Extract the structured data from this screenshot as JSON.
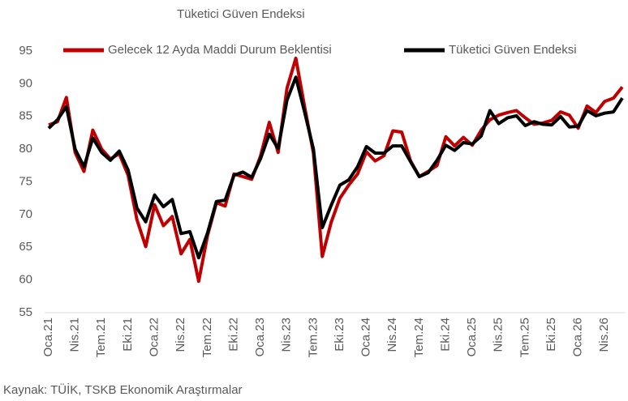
{
  "chart_data": {
    "type": "line",
    "title": "Tüketici Güven Endeksi",
    "source": "Kaynak: TÜİK, TSKB Ekonomik Araştırmalar",
    "categories": [
      "Oca.21",
      null,
      null,
      "Nis.21",
      null,
      null,
      "Tem.21",
      null,
      null,
      "Eki.21",
      null,
      null,
      "Oca.22",
      null,
      null,
      "Nis.22",
      null,
      null,
      "Tem.22",
      null,
      null,
      "Eki.22",
      null,
      null,
      "Oca.23",
      null,
      null,
      "Nis.23",
      null,
      null,
      "Tem.23",
      null,
      null,
      "Eki.23",
      null,
      null,
      "Oca.24",
      null,
      null,
      "Nis.24",
      null,
      null,
      "Tem.24",
      null,
      null,
      "Eki.24",
      null,
      null,
      "Oca.25",
      null,
      null,
      "Nis.25",
      null,
      null,
      "Tem.25",
      null,
      null,
      "Eki.25",
      null,
      null,
      "Oca.26",
      null,
      null,
      "Nis.26",
      null,
      null
    ],
    "series": [
      {
        "name": "Gelecek 12 Ayda Maddi Durum Beklentisi",
        "color": "#c00000",
        "values": [
          83.7,
          84.2,
          87.9,
          79.5,
          76.6,
          82.9,
          80,
          78.5,
          79.3,
          76,
          69.2,
          65.1,
          71.5,
          68.3,
          69.7,
          64,
          66.2,
          59.8,
          66.8,
          71.8,
          71.3,
          76.2,
          75.8,
          75.4,
          78.9,
          84.1,
          79.5,
          89.3,
          93.9,
          86.5,
          79.4,
          63.6,
          68.8,
          72.5,
          74.5,
          76.2,
          79.6,
          78.2,
          79,
          82.8,
          82.6,
          78.2,
          75.8,
          76.6,
          77.5,
          81.9,
          80.5,
          81.8,
          80.6,
          82.9,
          84.5,
          85.2,
          85.6,
          85.9,
          84.8,
          83.8,
          84,
          84.4,
          85.7,
          85.2,
          83.2,
          86.6,
          85.6,
          87.3,
          87.8,
          89.5
        ]
      },
      {
        "name": "Tüketici Güven Endeksi",
        "color": "#000000",
        "values": [
          83.2,
          84.5,
          86.5,
          80,
          77.3,
          81.7,
          79.5,
          78.3,
          79.7,
          76.8,
          71,
          68.9,
          73,
          71.2,
          72.3,
          67.1,
          67.4,
          63.4,
          67.2,
          72,
          72.2,
          76,
          76.5,
          75.7,
          78.5,
          82.3,
          80.1,
          87.5,
          91,
          85.7,
          80,
          68,
          71.4,
          74.5,
          75.3,
          77.3,
          80.4,
          79.4,
          79.4,
          80.5,
          80.5,
          78.1,
          75.8,
          76.4,
          78.3,
          80.6,
          79.8,
          81,
          80.8,
          82,
          85.9,
          83.9,
          84.8,
          85.1,
          83.6,
          84.2,
          83.8,
          83.7,
          85,
          83.4,
          83.5,
          85.9,
          85.1,
          85.5,
          85.7,
          87.8
        ]
      }
    ],
    "ylim": [
      55,
      95
    ],
    "yticks": [
      55,
      60,
      65,
      70,
      75,
      80,
      85,
      90,
      95
    ],
    "grid": false,
    "legend": "top"
  }
}
